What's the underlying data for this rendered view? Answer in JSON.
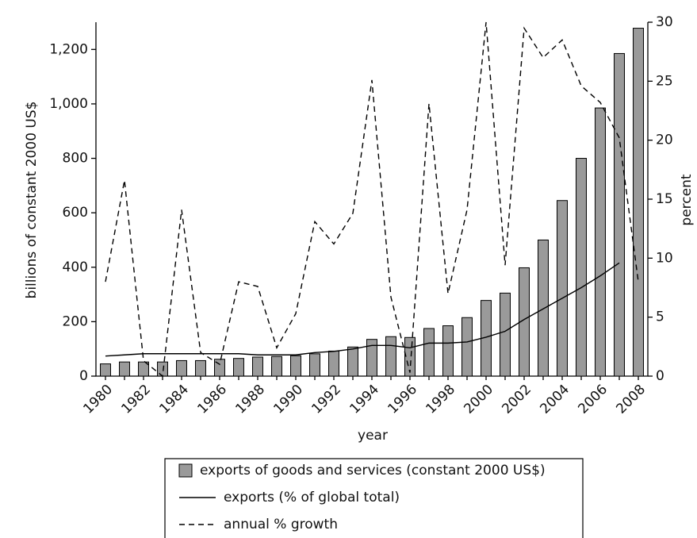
{
  "chart_data": {
    "type": "bar",
    "xlabel": "year",
    "ylabel": "billions of constant 2000 US$",
    "y2label": "percent",
    "categories": [
      "1980",
      null,
      "1982",
      null,
      "1984",
      null,
      "1986",
      null,
      "1988",
      null,
      "1990",
      null,
      "1992",
      null,
      "1994",
      null,
      "1996",
      null,
      "1998",
      null,
      "2000",
      null,
      "2002",
      null,
      "2004",
      null,
      "2006",
      null,
      "2008"
    ],
    "ylim": [
      0,
      1300
    ],
    "yticks": [
      0,
      200,
      400,
      600,
      800,
      {
        "value": 1000,
        "label": "1,000"
      },
      {
        "value": 1200,
        "label": "1,200"
      }
    ],
    "y2lim": [
      0,
      30
    ],
    "y2ticks": [
      0,
      5,
      10,
      15,
      20,
      25,
      30
    ],
    "series": [
      {
        "name": "exports of goods and services (constant 2000 US$)",
        "kind": "bar",
        "color": "#9a9a9a",
        "values": [
          45,
          52,
          52,
          52,
          57,
          57,
          62,
          65,
          70,
          72,
          75,
          82,
          92,
          107,
          135,
          145,
          142,
          175,
          185,
          215,
          278,
          305,
          398,
          500,
          645,
          800,
          985,
          1185,
          1278
        ]
      },
      {
        "name": "exports (% of global total)",
        "kind": "line",
        "axis": "y2",
        "color": "#000000",
        "dashed": false,
        "values": [
          1.7,
          1.8,
          1.9,
          1.9,
          1.9,
          1.9,
          1.9,
          1.9,
          1.8,
          1.8,
          1.8,
          2.0,
          2.1,
          2.3,
          2.6,
          2.6,
          2.4,
          2.8,
          2.8,
          2.9,
          3.3,
          3.8,
          4.8,
          5.7,
          6.6,
          7.5,
          8.5,
          9.6,
          null
        ]
      },
      {
        "name": "annual % growth",
        "kind": "line",
        "axis": "y2",
        "color": "#000000",
        "dashed": true,
        "values": [
          8.0,
          16.6,
          1.3,
          0,
          14.1,
          2.0,
          1.0,
          8.0,
          7.6,
          2.4,
          5.3,
          13.1,
          11.2,
          13.8,
          25.1,
          6.7,
          0.3,
          23.1,
          7.0,
          14.1,
          30,
          9.4,
          29.5,
          27,
          28.5,
          24.6,
          23.2,
          20.2,
          8.0
        ]
      }
    ]
  }
}
